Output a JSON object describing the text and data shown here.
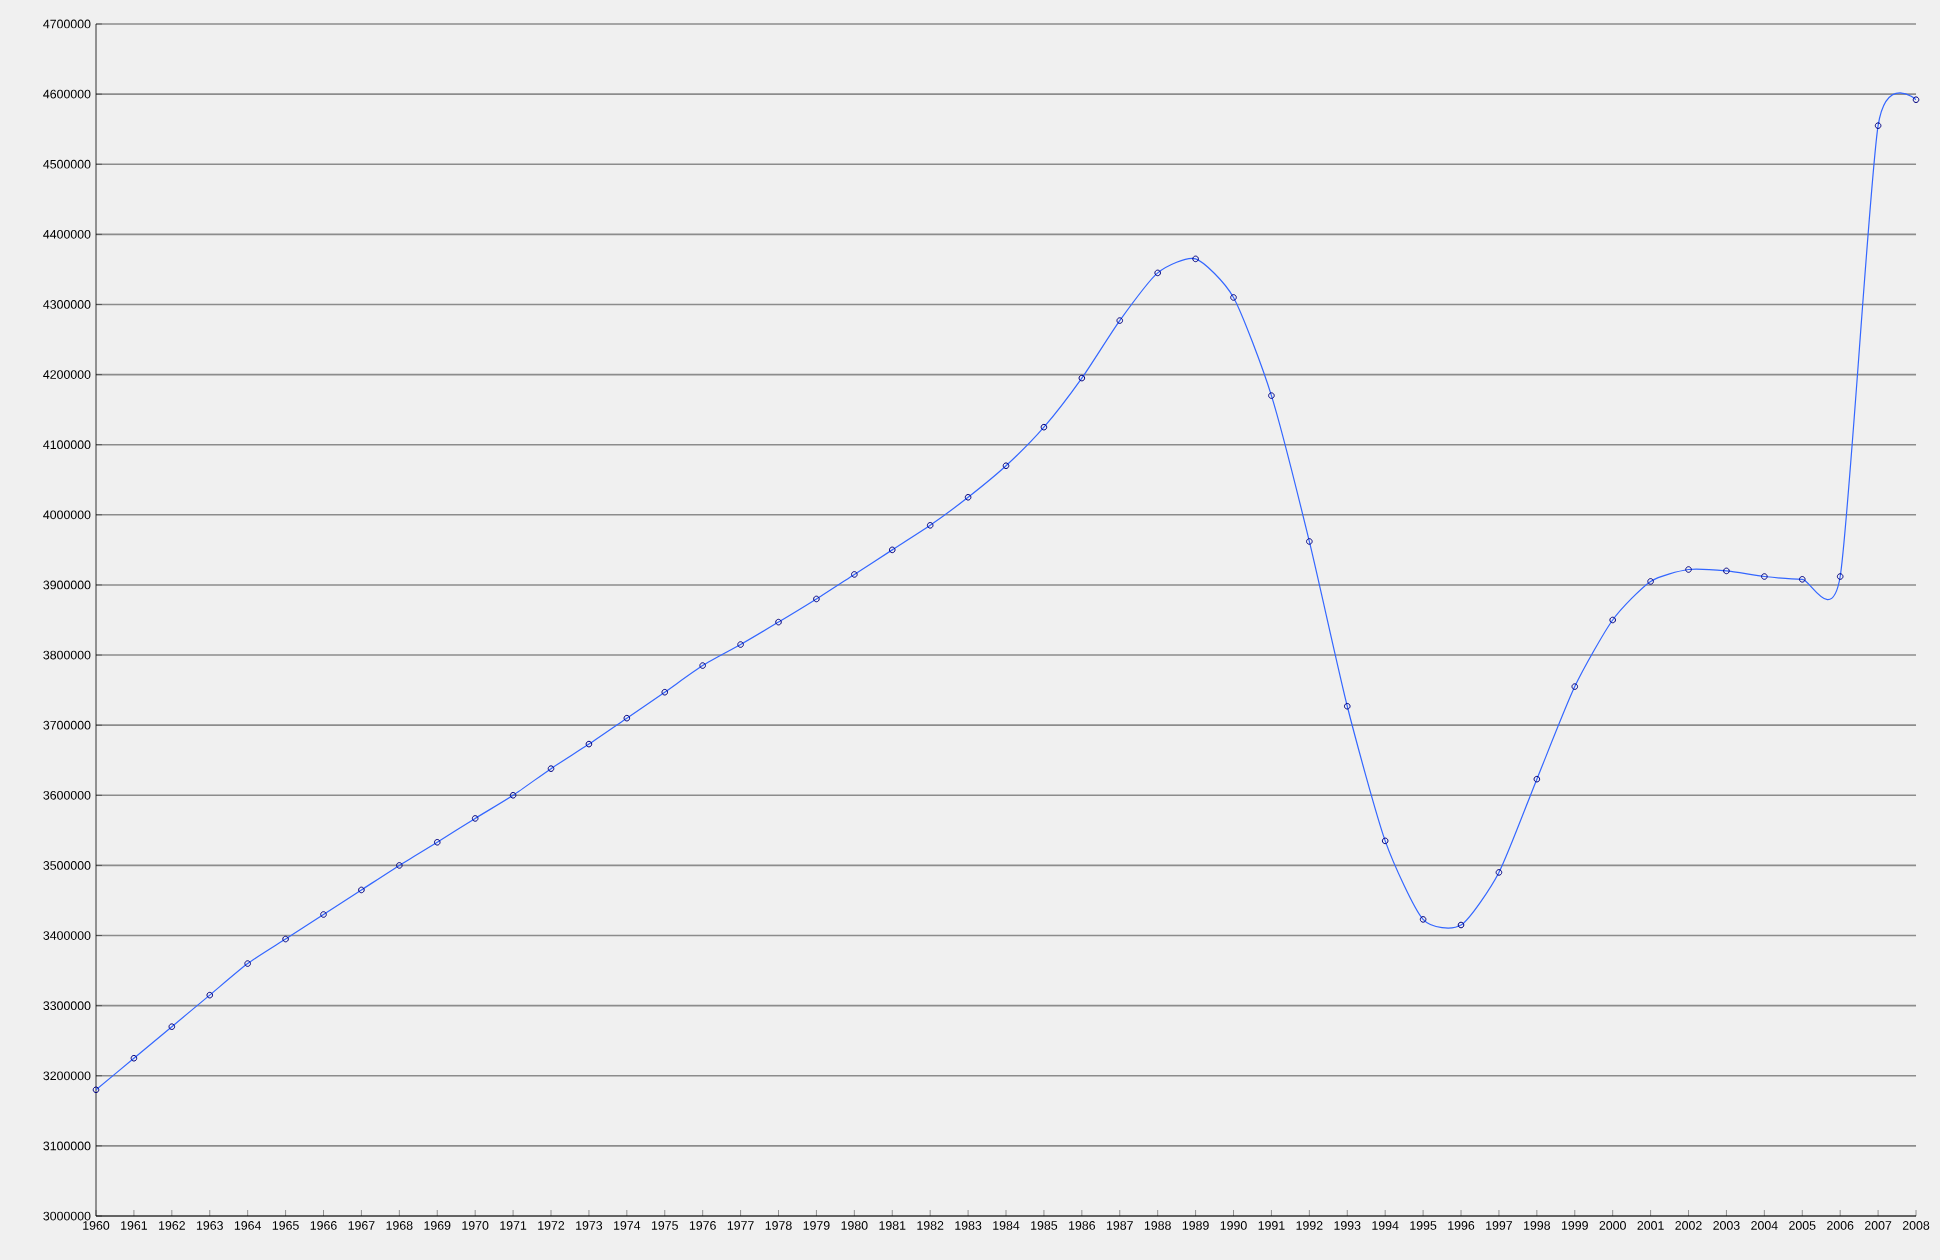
{
  "chart_data": {
    "type": "line",
    "x": [
      1960,
      1961,
      1962,
      1963,
      1964,
      1965,
      1966,
      1967,
      1968,
      1969,
      1970,
      1971,
      1972,
      1973,
      1974,
      1975,
      1976,
      1977,
      1978,
      1979,
      1980,
      1981,
      1982,
      1983,
      1984,
      1985,
      1986,
      1987,
      1988,
      1989,
      1990,
      1991,
      1992,
      1993,
      1994,
      1995,
      1996,
      1997,
      1998,
      1999,
      2000,
      2001,
      2002,
      2003,
      2004,
      2005,
      2006,
      2007,
      2008
    ],
    "series": [
      {
        "color": "#3366ff",
        "values": [
          3180000,
          3225000,
          3270000,
          3315000,
          3360000,
          3395000,
          3430000,
          3465000,
          3500000,
          3533000,
          3567000,
          3600000,
          3638000,
          3673000,
          3710000,
          3747000,
          3785000,
          3815000,
          3847000,
          3880000,
          3915000,
          3950000,
          3985000,
          4025000,
          4070000,
          4125000,
          4195000,
          4277000,
          4345000,
          4365000,
          4310000,
          4170000,
          3962000,
          3727000,
          3535000,
          3423000,
          3415000,
          3490000,
          3623000,
          3755000,
          3850000,
          3905000,
          3922000,
          3920000,
          3912000,
          3908000,
          3912000,
          4555000,
          4592000
        ]
      }
    ],
    "xlim": [
      1960,
      2008
    ],
    "xticks": [
      1960,
      1961,
      1962,
      1963,
      1964,
      1965,
      1966,
      1967,
      1968,
      1969,
      1970,
      1971,
      1972,
      1973,
      1974,
      1975,
      1976,
      1977,
      1978,
      1979,
      1980,
      1981,
      1982,
      1983,
      1984,
      1985,
      1986,
      1987,
      1988,
      1989,
      1990,
      1991,
      1992,
      1993,
      1994,
      1995,
      1996,
      1997,
      1998,
      1999,
      2000,
      2001,
      2002,
      2003,
      2004,
      2005,
      2006,
      2007,
      2008
    ],
    "ylim": [
      3000000,
      4700000
    ],
    "yticks": [
      3000000,
      3100000,
      3200000,
      3300000,
      3400000,
      3500000,
      3600000,
      3700000,
      3800000,
      3900000,
      4000000,
      4100000,
      4200000,
      4300000,
      4400000,
      4500000,
      4600000,
      4700000
    ],
    "grid": "y",
    "marker": "circle",
    "line_style": "solid"
  }
}
